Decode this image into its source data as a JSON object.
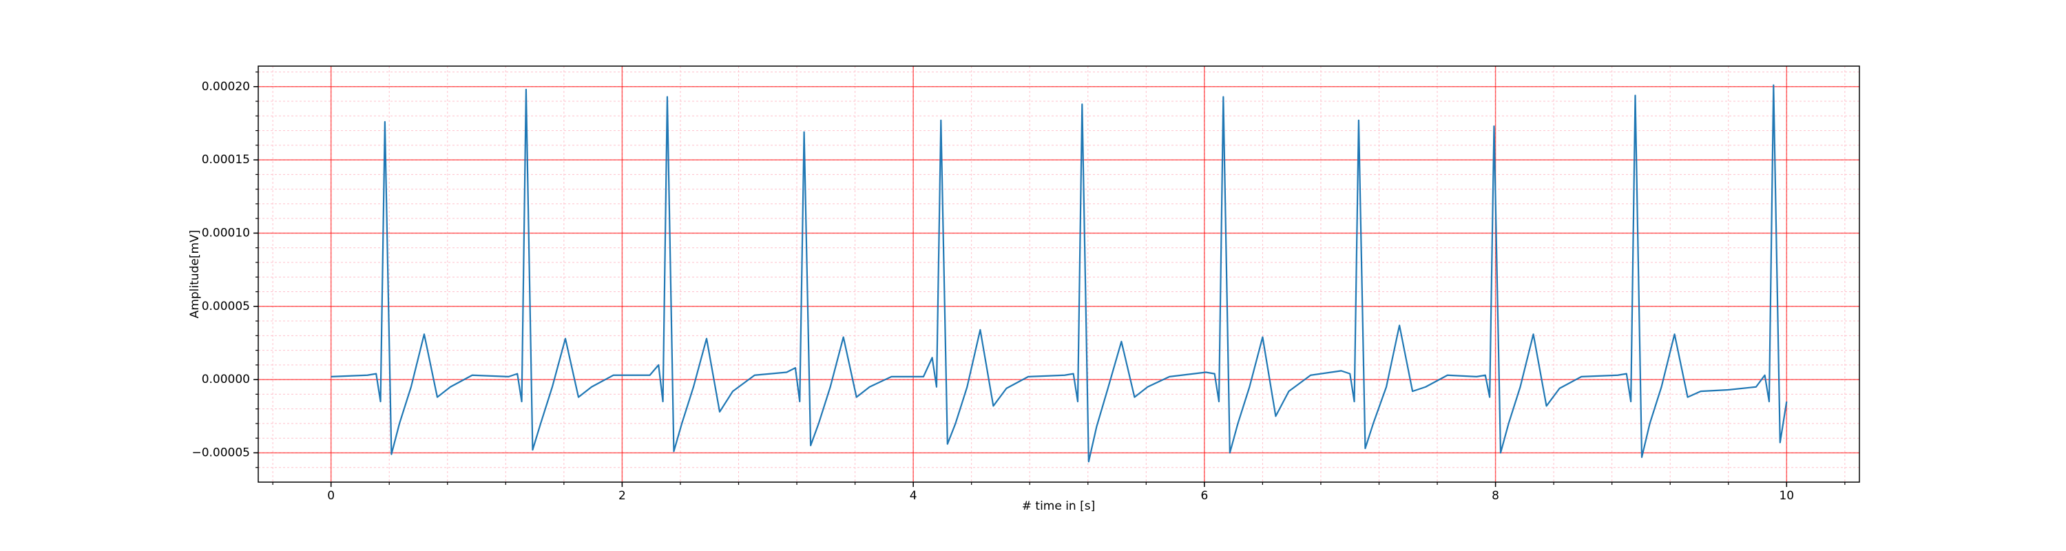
{
  "chart_data": {
    "type": "line",
    "xlabel": "# time in [s]",
    "ylabel": "Amplitude[mV]",
    "xlim": [
      -0.5,
      10.5
    ],
    "ylim": [
      -7e-05,
      0.000214
    ],
    "xticks": [
      0,
      2,
      4,
      6,
      8,
      10
    ],
    "yticks": [
      {
        "value": -5e-05,
        "label": "−0.00005"
      },
      {
        "value": 0,
        "label": "0.00000"
      },
      {
        "value": 5e-05,
        "label": "0.00005"
      },
      {
        "value": 0.0001,
        "label": "0.00010"
      },
      {
        "value": 0.00015,
        "label": "0.00015"
      },
      {
        "value": 0.0002,
        "label": "0.00020"
      }
    ],
    "grid": true,
    "minor_grid": true,
    "series": [
      {
        "color": "#1f77b4",
        "x": [
          0,
          0.25,
          0.31,
          0.34,
          0.37,
          0.415,
          0.47,
          0.55,
          0.64,
          0.73,
          0.82,
          0.97,
          1.22,
          1.28,
          1.31,
          1.34,
          1.385,
          1.44,
          1.52,
          1.61,
          1.7,
          1.79,
          1.94,
          2.19,
          2.25,
          2.28,
          2.31,
          2.355,
          2.41,
          2.49,
          2.58,
          2.67,
          2.76,
          2.91,
          3.13,
          3.19,
          3.22,
          3.25,
          3.295,
          3.35,
          3.43,
          3.52,
          3.61,
          3.7,
          3.85,
          4.07,
          4.13,
          4.16,
          4.19,
          4.235,
          4.29,
          4.37,
          4.46,
          4.55,
          4.64,
          4.79,
          5.04,
          5.1,
          5.13,
          5.16,
          5.205,
          5.26,
          5.34,
          5.43,
          5.52,
          5.61,
          5.76,
          6.01,
          6.07,
          6.1,
          6.13,
          6.175,
          6.23,
          6.31,
          6.4,
          6.49,
          6.58,
          6.73,
          6.94,
          7.0,
          7.03,
          7.06,
          7.105,
          7.16,
          7.25,
          7.34,
          7.43,
          7.52,
          7.67,
          7.87,
          7.93,
          7.96,
          7.99,
          8.035,
          8.09,
          8.17,
          8.26,
          8.35,
          8.44,
          8.59,
          8.84,
          8.9,
          8.93,
          8.96,
          9.005,
          9.06,
          9.14,
          9.23,
          9.32,
          9.41,
          9.6,
          9.79,
          9.85,
          9.88,
          9.91,
          9.955,
          10.0
        ],
        "values": [
          2e-06,
          3e-06,
          4e-06,
          -1.5e-05,
          0.000176,
          -5.1e-05,
          -3e-05,
          -5e-06,
          3.1e-05,
          -1.2e-05,
          -5e-06,
          3e-06,
          2e-06,
          4e-06,
          -1.5e-05,
          0.000198,
          -4.8e-05,
          -3e-05,
          -5e-06,
          2.8e-05,
          -1.2e-05,
          -5e-06,
          3e-06,
          3e-06,
          1e-05,
          -1.5e-05,
          0.000193,
          -4.9e-05,
          -3e-05,
          -5e-06,
          2.8e-05,
          -2.2e-05,
          -8e-06,
          3e-06,
          5e-06,
          8e-06,
          -1.5e-05,
          0.000169,
          -4.5e-05,
          -3e-05,
          -5e-06,
          2.9e-05,
          -1.2e-05,
          -5e-06,
          2e-06,
          2e-06,
          1.5e-05,
          -5e-06,
          0.000177,
          -4.4e-05,
          -3e-05,
          -5e-06,
          3.4e-05,
          -1.8e-05,
          -6e-06,
          2e-06,
          3e-06,
          4e-06,
          -1.5e-05,
          0.000188,
          -5.6e-05,
          -3.2e-05,
          -5e-06,
          2.6e-05,
          -1.2e-05,
          -5e-06,
          2e-06,
          5e-06,
          4e-06,
          -1.5e-05,
          0.000193,
          -5e-05,
          -3e-05,
          -5e-06,
          2.9e-05,
          -2.5e-05,
          -8e-06,
          3e-06,
          6e-06,
          4e-06,
          -1.5e-05,
          0.000177,
          -4.7e-05,
          -3e-05,
          -5e-06,
          3.7e-05,
          -8e-06,
          -5e-06,
          3e-06,
          2e-06,
          3e-06,
          -1.2e-05,
          0.000173,
          -5e-05,
          -3e-05,
          -5e-06,
          3.1e-05,
          -1.8e-05,
          -6e-06,
          2e-06,
          3e-06,
          4e-06,
          -1.5e-05,
          0.000194,
          -5.3e-05,
          -3e-05,
          -5e-06,
          3.1e-05,
          -1.2e-05,
          -8e-06,
          -7e-06,
          -5e-06,
          3e-06,
          -1.5e-05,
          0.000201,
          -4.3e-05,
          -1.5e-05
        ]
      }
    ]
  }
}
